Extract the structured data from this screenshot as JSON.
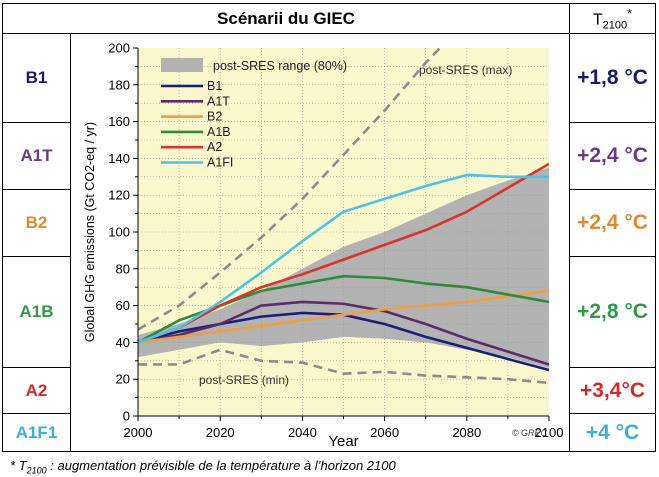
{
  "header": {
    "title": "Scénarii du GIEC",
    "temp_label_main": "T",
    "temp_label_sub": "2100",
    "temp_label_star": "*"
  },
  "scenarios": [
    {
      "name": "B1",
      "temp": "+1,8 °C",
      "color": "#1a1a6e"
    },
    {
      "name": "A1T",
      "temp": "+2,4 °C",
      "color": "#6b3a8a"
    },
    {
      "name": "B2",
      "temp": "+2,4 °C",
      "color": "#e08a2e"
    },
    {
      "name": "A1B",
      "temp": "+2,8 °C",
      "color": "#2e9a44"
    },
    {
      "name": "A2",
      "temp": "+3,4°C",
      "color": "#d42a2a"
    },
    {
      "name": "A1F1",
      "temp": "+4 °C",
      "color": "#3aaedc"
    }
  ],
  "footnote": {
    "star": "* ",
    "t_main": "T",
    "t_sub": "2100",
    "text": " : augmentation  prévisible de la température  à l’horizon 2100"
  },
  "chart_data": {
    "type": "line",
    "xlabel": "Year",
    "ylabel": "Global GHG emissions (Gt CO2-eq / yr)",
    "xlim": [
      2000,
      2100
    ],
    "ylim": [
      0,
      200
    ],
    "x_ticks": [
      "2000",
      "2020",
      "2040",
      "2060",
      "2080",
      "2100"
    ],
    "y_ticks": [
      "0",
      "20",
      "40",
      "60",
      "80",
      "100",
      "120",
      "140",
      "160",
      "180",
      "200"
    ],
    "plot_background": "#fbf7cc",
    "grid": true,
    "legend_position": "top-left",
    "copyright": "© GREC",
    "range": {
      "name": "post-SRES range (80%)",
      "color": "#b3b3b3",
      "x": [
        2000,
        2010,
        2020,
        2030,
        2040,
        2050,
        2060,
        2070,
        2080,
        2090,
        2100
      ],
      "upper": [
        44,
        50,
        58,
        68,
        80,
        92,
        100,
        110,
        120,
        128,
        135
      ],
      "lower": [
        32,
        36,
        40,
        38,
        40,
        43,
        42,
        40,
        36,
        32,
        26
      ]
    },
    "dashed": [
      {
        "name": "post-SRES (max)",
        "color": "#8c8c8c",
        "x": [
          2000,
          2010,
          2020,
          2030,
          2040,
          2050,
          2060,
          2070,
          2080
        ],
        "y": [
          47,
          60,
          78,
          97,
          118,
          142,
          166,
          192,
          215
        ]
      },
      {
        "name": "post-SRES (min)",
        "color": "#8c8c8c",
        "x": [
          2000,
          2010,
          2020,
          2030,
          2040,
          2050,
          2060,
          2070,
          2080,
          2090,
          2100
        ],
        "y": [
          28,
          28,
          36,
          30,
          29,
          23,
          24,
          22,
          21,
          20,
          18
        ]
      }
    ],
    "series": [
      {
        "name": "B1",
        "color": "#1c1f7a",
        "x": [
          2000,
          2010,
          2020,
          2030,
          2040,
          2050,
          2060,
          2070,
          2080,
          2090,
          2100
        ],
        "y": [
          40,
          46,
          50,
          54,
          56,
          55,
          50,
          43,
          37,
          31,
          25
        ]
      },
      {
        "name": "A1T",
        "color": "#5a2d6a",
        "x": [
          2000,
          2010,
          2020,
          2030,
          2040,
          2050,
          2060,
          2070,
          2080,
          2090,
          2100
        ],
        "y": [
          40,
          44,
          50,
          60,
          62,
          61,
          57,
          50,
          42,
          35,
          28
        ]
      },
      {
        "name": "B2",
        "color": "#f0a040",
        "x": [
          2000,
          2010,
          2020,
          2030,
          2040,
          2050,
          2060,
          2070,
          2080,
          2090,
          2100
        ],
        "y": [
          40,
          43,
          46,
          49,
          52,
          55,
          58,
          60,
          62,
          65,
          68
        ]
      },
      {
        "name": "A1B",
        "color": "#2e8b3a",
        "x": [
          2000,
          2010,
          2020,
          2030,
          2040,
          2050,
          2060,
          2070,
          2080,
          2090,
          2100
        ],
        "y": [
          40,
          52,
          60,
          68,
          72,
          76,
          75,
          72,
          70,
          66,
          62
        ]
      },
      {
        "name": "A2",
        "color": "#d9332c",
        "x": [
          2000,
          2010,
          2020,
          2030,
          2040,
          2050,
          2060,
          2070,
          2080,
          2090,
          2100
        ],
        "y": [
          40,
          48,
          60,
          70,
          77,
          85,
          93,
          101,
          111,
          124,
          137
        ]
      },
      {
        "name": "A1FI",
        "color": "#4cc4e8",
        "x": [
          2000,
          2010,
          2020,
          2030,
          2040,
          2050,
          2060,
          2070,
          2080,
          2090,
          2100
        ],
        "y": [
          40,
          48,
          62,
          78,
          95,
          111,
          118,
          125,
          131,
          130,
          130
        ]
      }
    ]
  }
}
